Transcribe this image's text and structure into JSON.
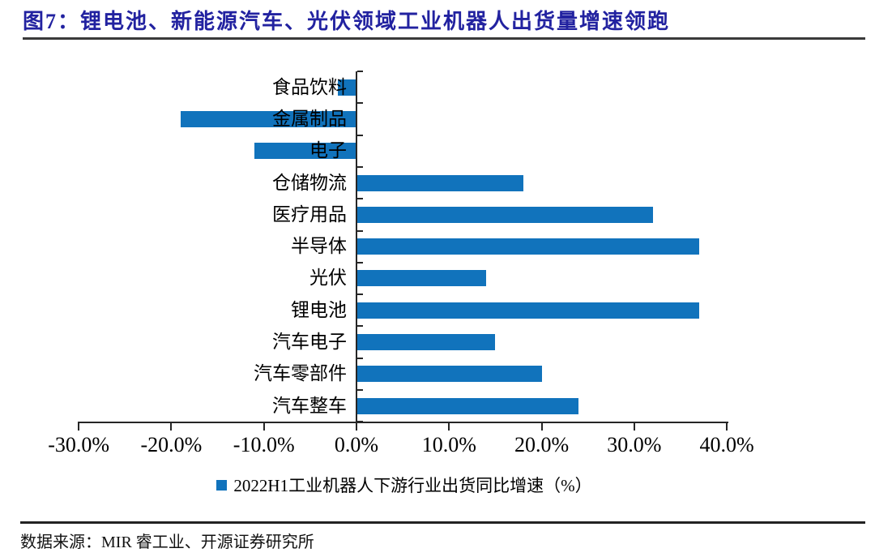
{
  "header": {
    "title": "图7：锂电池、新能源汽车、光伏领域工业机器人出货量增速领跑"
  },
  "legend": {
    "label": "2022H1工业机器人下游行业出货同比增速（%）"
  },
  "footer": {
    "source": "数据来源：MIR 睿工业、开源证券研究所"
  },
  "colors": {
    "bar_blue": "#1173BC",
    "title_navy": "#2222A0",
    "rule_dark": "#3a3a3a",
    "axis_black": "#262626"
  },
  "chart_data": {
    "type": "bar",
    "orientation": "horizontal",
    "title": "图7：锂电池、新能源汽车、光伏领域工业机器人出货量增速领跑",
    "series_name": "2022H1工业机器人下游行业出货同比增速（%）",
    "categories": [
      "食品饮料",
      "金属制品",
      "电子",
      "仓储物流",
      "医疗用品",
      "半导体",
      "光伏",
      "锂电池",
      "汽车电子",
      "汽车零部件",
      "汽车整车"
    ],
    "values": [
      -2.0,
      -19.0,
      -11.0,
      18.0,
      32.0,
      37.0,
      14.0,
      37.0,
      15.0,
      20.0,
      24.0
    ],
    "unit": "%",
    "xlabel": "",
    "ylabel": "",
    "xlim": [
      -30,
      40
    ],
    "x_tick_values": [
      -30,
      -20,
      -10,
      0,
      10,
      20,
      30,
      40
    ],
    "x_tick_labels": [
      "-30.0%",
      "-20.0%",
      "-10.0%",
      "0.0%",
      "10.0%",
      "20.0%",
      "30.0%",
      "40.0%"
    ],
    "grid": false,
    "legend_position": "bottom"
  }
}
